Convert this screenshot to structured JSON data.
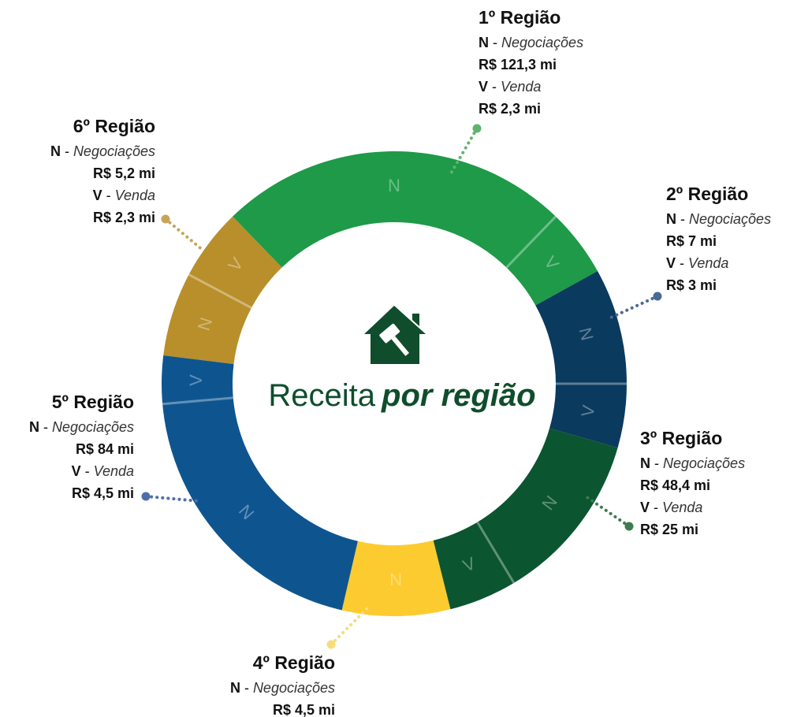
{
  "title": {
    "lead": "Receita",
    "emphasis": "por região"
  },
  "separator": "-",
  "regions": [
    {
      "title": "1º Região",
      "n_key": "N",
      "n_name": "Negociações",
      "n_value": "R$ 121,3 mi",
      "v_key": "V",
      "v_name": "Venda",
      "v_value": "R$ 2,3 mi"
    },
    {
      "title": "2º Região",
      "n_key": "N",
      "n_name": "Negociações",
      "n_value": "R$ 7 mi",
      "v_key": "V",
      "v_name": "Venda",
      "v_value": "R$ 3 mi"
    },
    {
      "title": "3º Região",
      "n_key": "N",
      "n_name": "Negociações",
      "n_value": "R$ 48,4 mi",
      "v_key": "V",
      "v_name": "Venda",
      "v_value": "R$ 25 mi"
    },
    {
      "title": "4º Região",
      "n_key": "N",
      "n_name": "Negociações",
      "n_value": "R$ 4,5 mi"
    },
    {
      "title": "5º Região",
      "n_key": "N",
      "n_name": "Negociações",
      "n_value": "R$ 84 mi",
      "v_key": "V",
      "v_name": "Venda",
      "v_value": "R$ 4,5 mi"
    },
    {
      "title": "6º Região",
      "n_key": "N",
      "n_name": "Negociações",
      "n_value": "R$ 5,2 mi",
      "v_key": "V",
      "v_name": "Venda",
      "v_value": "R$ 2,3 mi"
    }
  ]
}
